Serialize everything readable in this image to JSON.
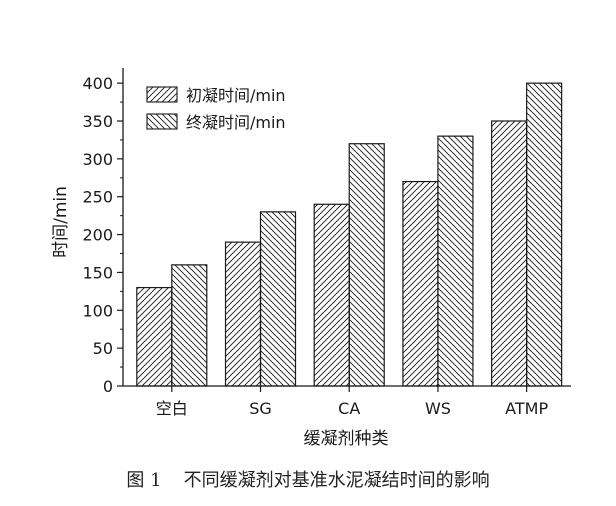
{
  "caption": {
    "figure_label": "图 1",
    "text": "不同缓凝剂对基准水泥凝结时间的影响"
  },
  "chart_data": {
    "type": "bar",
    "categories": [
      "空白",
      "SG",
      "CA",
      "WS",
      "ATMP"
    ],
    "series": [
      {
        "name": "初凝时间/min",
        "values": [
          130,
          190,
          240,
          270,
          350
        ],
        "hatch": "forward"
      },
      {
        "name": "终凝时间/min",
        "values": [
          160,
          230,
          320,
          330,
          400
        ],
        "hatch": "back"
      }
    ],
    "xlabel": "缓凝剂种类",
    "ylabel": "时间/min",
    "ylim": [
      0,
      420
    ],
    "yticks": [
      0,
      50,
      100,
      150,
      200,
      250,
      300,
      350,
      400
    ],
    "grid": false,
    "legend": "top-left",
    "colors": {
      "ink": "#1a1a1a",
      "background": "#ffffff"
    }
  }
}
